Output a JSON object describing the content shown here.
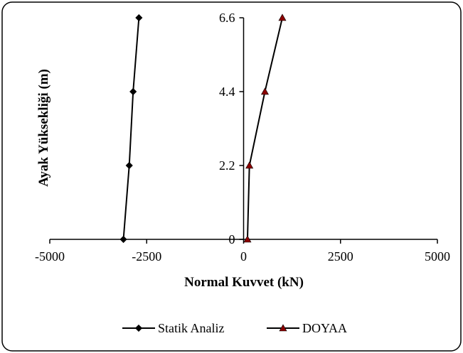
{
  "chart_data": {
    "type": "line",
    "title": "",
    "xlabel": "Normal Kuvvet (kN)",
    "ylabel": "Ayak Yüksekliği (m)",
    "xlim": [
      -5000,
      5000
    ],
    "ylim": [
      0,
      6.6
    ],
    "xticks": [
      -5000,
      -2500,
      0,
      2500,
      5000
    ],
    "yticks": [
      0,
      2.2,
      4.4,
      6.6
    ],
    "xtick_labels": [
      "-5000",
      "-2500",
      "0",
      "2500",
      "5000"
    ],
    "ytick_labels": [
      "0",
      "2.2",
      "4.4",
      "6.6"
    ],
    "grid": false,
    "legend_position": "bottom",
    "series": [
      {
        "name": "Statik Analiz",
        "marker": "diamond",
        "color": "#000000",
        "marker_color": "#000000",
        "x": [
          -3100,
          -2950,
          -2850,
          -2700
        ],
        "y": [
          0,
          2.2,
          4.4,
          6.6
        ]
      },
      {
        "name": "DOYAA",
        "marker": "triangle",
        "color": "#000000",
        "marker_color": "#8b0000",
        "x": [
          100,
          150,
          550,
          1000
        ],
        "y": [
          0,
          2.2,
          4.4,
          6.6
        ]
      }
    ]
  }
}
